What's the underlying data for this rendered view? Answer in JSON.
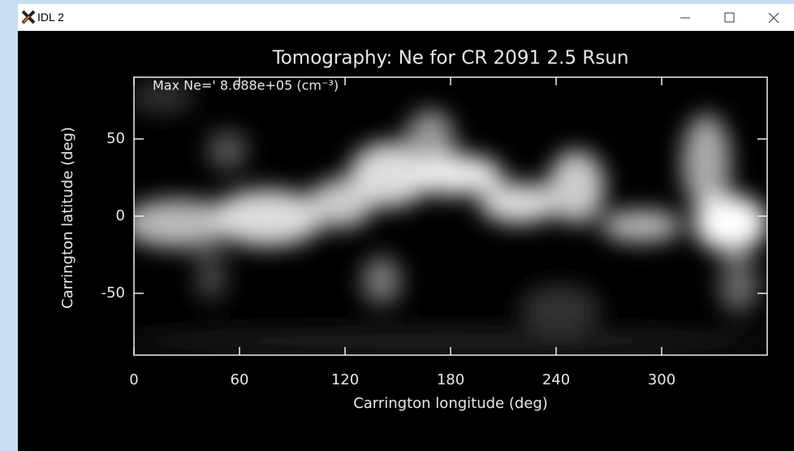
{
  "window": {
    "title": "IDL 2"
  },
  "chart_data": {
    "type": "image",
    "title": "Tomography:  Ne for CR 2091 2.5 Rsun",
    "annotation": "Max Ne=' 8.688e+05 (cm⁻³)",
    "x_label": "Carrington longitude (deg)",
    "y_label": "Carrington latitude (deg)",
    "xlim": [
      0,
      360
    ],
    "xticks": [
      0,
      60,
      120,
      180,
      240,
      300
    ],
    "ylim": [
      -90,
      90
    ],
    "yticks": [
      -50,
      0,
      50
    ]
  }
}
